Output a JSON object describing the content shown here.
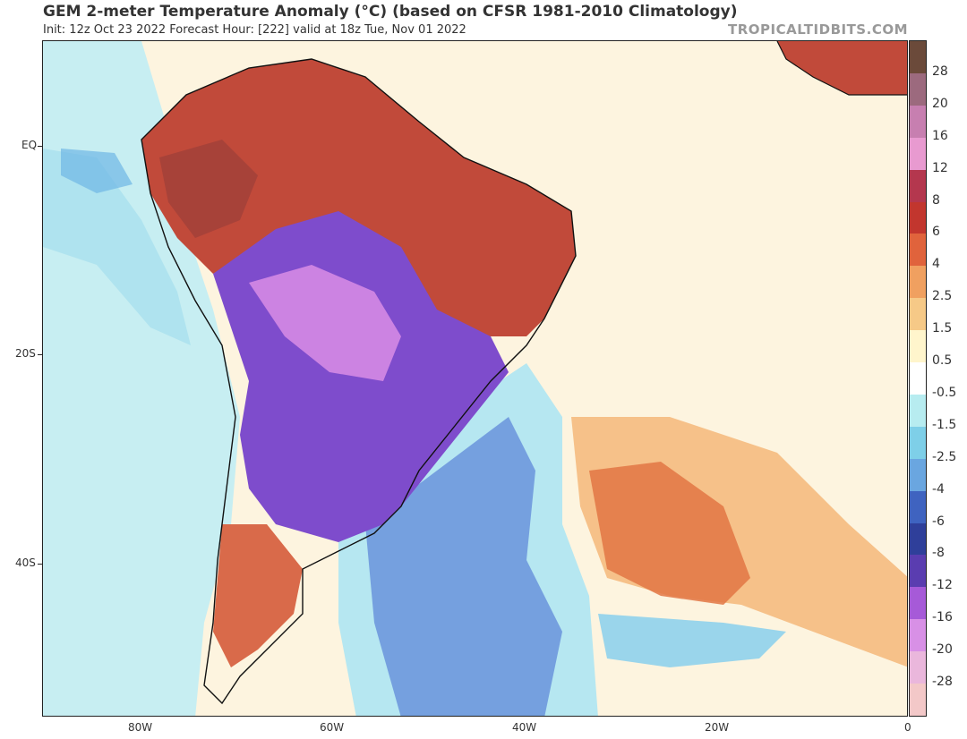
{
  "header": {
    "title": "GEM 2-meter Temperature Anomaly (°C) (based on CFSR 1981-2010 Climatology)",
    "subtitle": "Init: 12z Oct 23 2022   Forecast Hour: [222]   valid at 18z Tue, Nov 01 2022",
    "brand": "TROPICALTIDBITS.COM"
  },
  "axes": {
    "lat_labels": [
      "EQ",
      "20S",
      "40S"
    ],
    "lon_labels": [
      "80W",
      "60W",
      "40W",
      "20W",
      "0"
    ]
  },
  "colorbar": {
    "labels": [
      "28",
      "20",
      "16",
      "12",
      "8",
      "6",
      "4",
      "2.5",
      "1.5",
      "0.5",
      "-0.5",
      "-1.5",
      "-2.5",
      "-4",
      "-6",
      "-8",
      "-12",
      "-16",
      "-20",
      "-28"
    ],
    "colors": [
      "#6b4a3a",
      "#9c6a7e",
      "#c77fb0",
      "#e89ad0",
      "#b4374e",
      "#c2362e",
      "#e0633c",
      "#f0a060",
      "#f6c987",
      "#fff5cc",
      "#ffffff",
      "#b7ecf0",
      "#7ecfe8",
      "#6aa6e0",
      "#3f63c0",
      "#2f3f9a",
      "#5a3db0",
      "#a65ad8",
      "#d890e6",
      "#eab7dc",
      "#f3c8c8"
    ]
  },
  "colors": {
    "ocean_warm": "#fff7da",
    "ocean_cool": "#cdeff3",
    "land_hot": "#c14a3a",
    "land_cold": "#7e4ccc",
    "cold_core": "#d58ae4"
  }
}
